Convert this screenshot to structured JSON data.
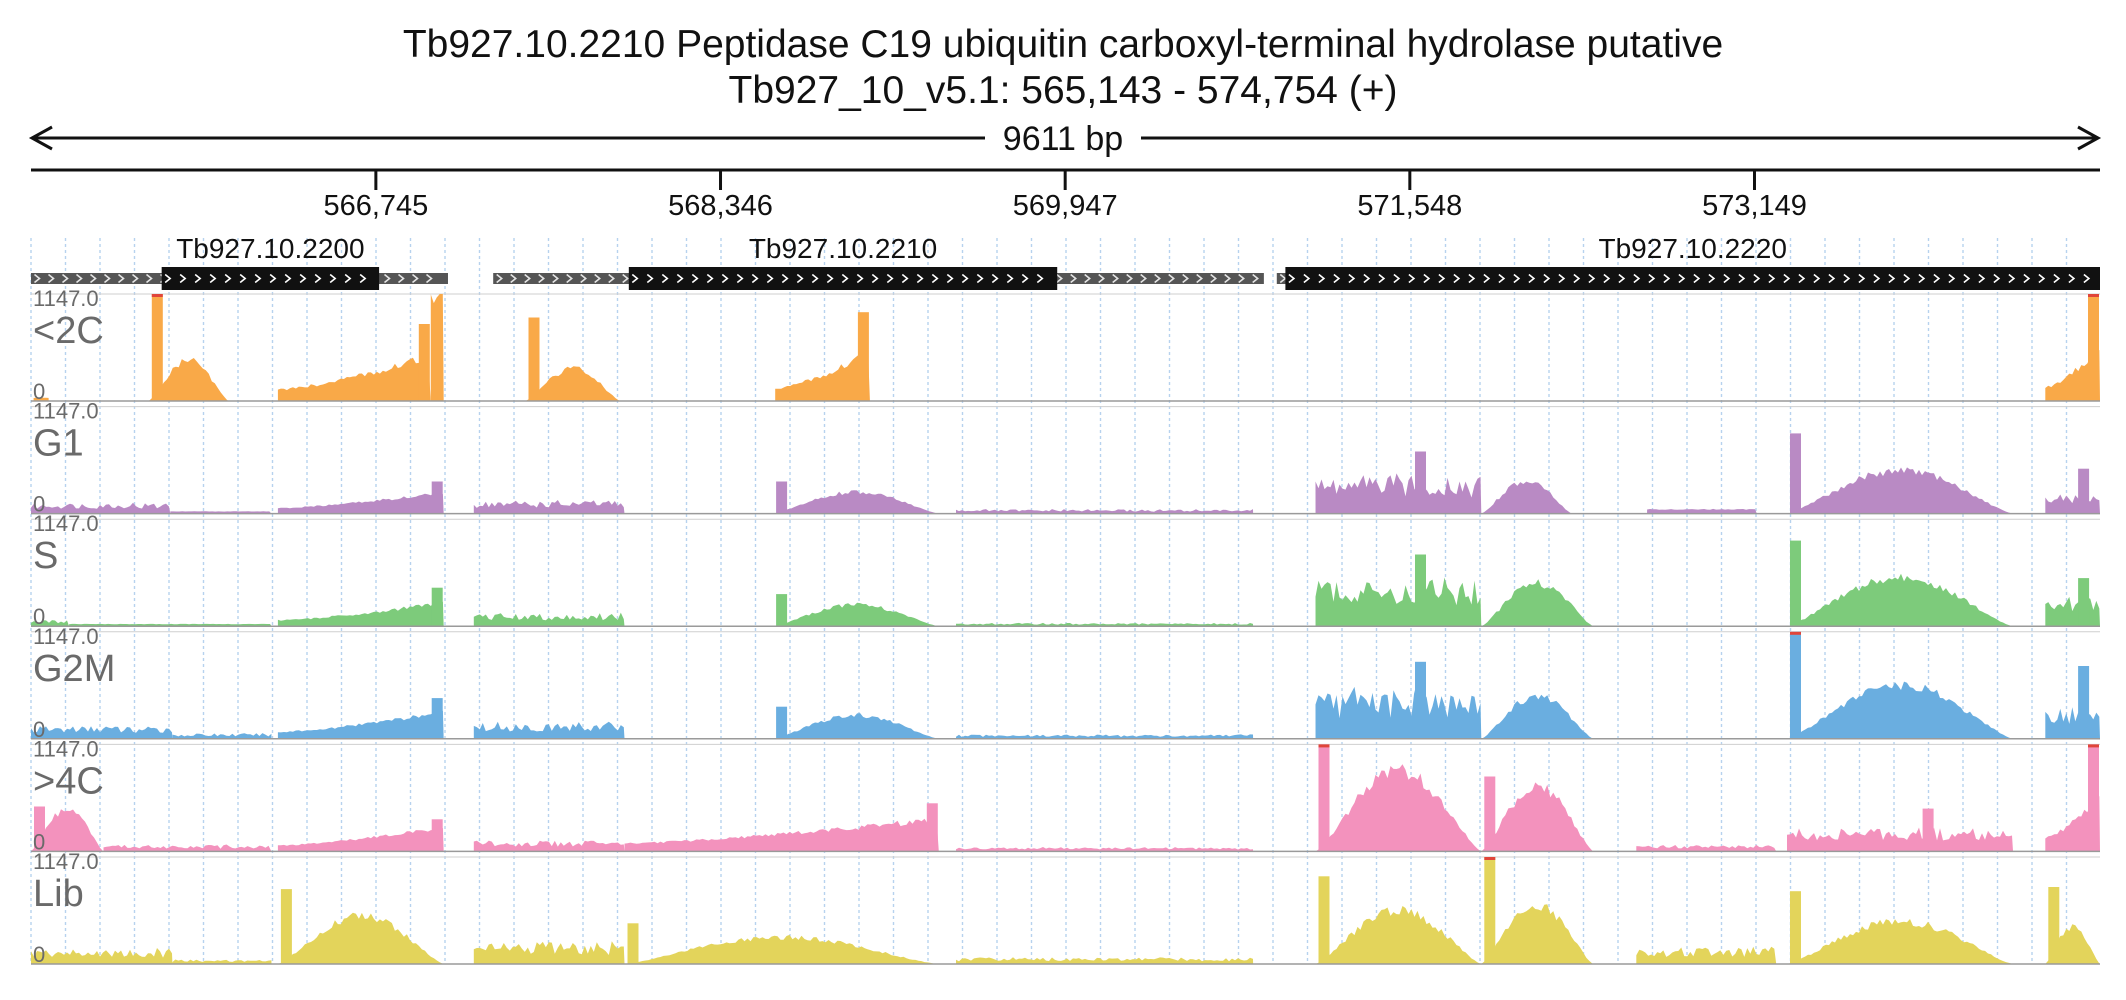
{
  "header": {
    "title": "Tb927.10.2210  Peptidase C19  ubiquitin carboxyl-terminal hydrolase  putative",
    "subtitle": "Tb927_10_v5.1: 565,143 - 574,754 (+)"
  },
  "chart_data": {
    "type": "area",
    "x_range": [
      565143,
      574754
    ],
    "span_label": "9611 bp",
    "ticks": [
      {
        "pos": 566745,
        "label": "566,745"
      },
      {
        "pos": 568346,
        "label": "568,346"
      },
      {
        "pos": 569947,
        "label": "569,947"
      },
      {
        "pos": 571548,
        "label": "571,548"
      },
      {
        "pos": 573149,
        "label": "573,149"
      }
    ],
    "genes": [
      {
        "id": "Tb927.10.2200",
        "utr": [
          565143,
          567080
        ],
        "cds": [
          565750,
          566760
        ]
      },
      {
        "id": "Tb927.10.2210",
        "utr": [
          567290,
          570870
        ],
        "cds": [
          567920,
          569910
        ]
      },
      {
        "id": "Tb927.10.2220",
        "utr": [
          570930,
          574754
        ],
        "cds": [
          570970,
          574754
        ]
      }
    ],
    "ylim": [
      0,
      1147.0
    ],
    "y_top_label": "1147.0",
    "y_bottom_label": "0",
    "series": [
      {
        "name": "<2C",
        "color": "#f9a948",
        "segments": [
          {
            "x": [
              565155,
              565225
            ],
            "level": 0.03,
            "shape": "flat"
          },
          {
            "x": [
              565690,
              566060
            ],
            "level": 0.38,
            "shape": "hump",
            "spike": 1.0
          },
          {
            "x": [
              566290,
              567000
            ],
            "level": 0.42,
            "shape": "rise",
            "spike": 0.72
          },
          {
            "x": [
              567000,
              567060
            ],
            "level": 1.0,
            "shape": "flat"
          },
          {
            "x": [
              567440,
              567880
            ],
            "level": 0.3,
            "shape": "hump",
            "spike": 0.78
          },
          {
            "x": [
              568600,
              569040
            ],
            "level": 0.45,
            "shape": "rise",
            "spike": 0.83
          },
          {
            "x": [
              574500,
              574754
            ],
            "level": 0.5,
            "shape": "rise",
            "spike": 1.0
          }
        ]
      },
      {
        "name": "G1",
        "color": "#b98ac4",
        "segments": [
          {
            "x": [
              565143,
              565790
            ],
            "level": 0.1,
            "shape": "noisy"
          },
          {
            "x": [
              565790,
              566260
            ],
            "level": 0.02,
            "shape": "flat"
          },
          {
            "x": [
              566290,
              567060
            ],
            "level": 0.2,
            "shape": "rise",
            "spike": 0.3
          },
          {
            "x": [
              567200,
              567900
            ],
            "level": 0.12,
            "shape": "noisy"
          },
          {
            "x": [
              568590,
              569360
            ],
            "level": 0.2,
            "shape": "hump",
            "spike": 0.3
          },
          {
            "x": [
              569440,
              570820
            ],
            "level": 0.04,
            "shape": "noisy"
          },
          {
            "x": [
              571110,
              571880
            ],
            "level": 0.35,
            "shape": "noisy",
            "spike": 0.58
          },
          {
            "x": [
              571880,
              572300
            ],
            "level": 0.3,
            "shape": "hump"
          },
          {
            "x": [
              572650,
              573160
            ],
            "level": 0.04,
            "shape": "flat"
          },
          {
            "x": [
              573300,
              574350
            ],
            "level": 0.4,
            "shape": "hump",
            "spike": 0.75
          },
          {
            "x": [
              574500,
              574754
            ],
            "level": 0.18,
            "shape": "noisy",
            "spike": 0.42
          }
        ]
      },
      {
        "name": "S",
        "color": "#7dcb7b",
        "segments": [
          {
            "x": [
              565143,
              565320
            ],
            "level": 0.06,
            "shape": "noisy"
          },
          {
            "x": [
              565320,
              566260
            ],
            "level": 0.02,
            "shape": "flat"
          },
          {
            "x": [
              566290,
              567060
            ],
            "level": 0.22,
            "shape": "rise",
            "spike": 0.36
          },
          {
            "x": [
              567200,
              567900
            ],
            "level": 0.12,
            "shape": "noisy"
          },
          {
            "x": [
              568590,
              569360
            ],
            "level": 0.2,
            "shape": "hump",
            "spike": 0.3
          },
          {
            "x": [
              569440,
              570820
            ],
            "level": 0.03,
            "shape": "noisy"
          },
          {
            "x": [
              571110,
              571880
            ],
            "level": 0.45,
            "shape": "noisy",
            "spike": 0.67
          },
          {
            "x": [
              571880,
              572400
            ],
            "level": 0.4,
            "shape": "hump"
          },
          {
            "x": [
              573300,
              574350
            ],
            "level": 0.45,
            "shape": "hump",
            "spike": 0.8
          },
          {
            "x": [
              574500,
              574754
            ],
            "level": 0.28,
            "shape": "noisy",
            "spike": 0.45
          }
        ]
      },
      {
        "name": "G2M",
        "color": "#6aaee0",
        "segments": [
          {
            "x": [
              565143,
              565800
            ],
            "level": 0.12,
            "shape": "noisy"
          },
          {
            "x": [
              565800,
              566260
            ],
            "level": 0.05,
            "shape": "noisy"
          },
          {
            "x": [
              566290,
              567060
            ],
            "level": 0.25,
            "shape": "rise",
            "spike": 0.38
          },
          {
            "x": [
              567200,
              567900
            ],
            "level": 0.15,
            "shape": "noisy"
          },
          {
            "x": [
              568590,
              569360
            ],
            "level": 0.22,
            "shape": "hump",
            "spike": 0.3
          },
          {
            "x": [
              569440,
              570820
            ],
            "level": 0.04,
            "shape": "noisy"
          },
          {
            "x": [
              571110,
              571880
            ],
            "level": 0.45,
            "shape": "noisy",
            "spike": 0.72
          },
          {
            "x": [
              571880,
              572400
            ],
            "level": 0.4,
            "shape": "hump"
          },
          {
            "x": [
              573300,
              574350
            ],
            "level": 0.5,
            "shape": "hump",
            "spike": 1.0
          },
          {
            "x": [
              574500,
              574754
            ],
            "level": 0.3,
            "shape": "noisy",
            "spike": 0.68
          }
        ]
      },
      {
        "name": ">4C",
        "color": "#f392bd",
        "segments": [
          {
            "x": [
              565143,
              565480
            ],
            "level": 0.4,
            "shape": "hump",
            "spike": 0.42
          },
          {
            "x": [
              565480,
              566260
            ],
            "level": 0.06,
            "shape": "noisy"
          },
          {
            "x": [
              566290,
              567060
            ],
            "level": 0.22,
            "shape": "rise",
            "spike": 0.3
          },
          {
            "x": [
              567200,
              567900
            ],
            "level": 0.1,
            "shape": "noisy"
          },
          {
            "x": [
              567900,
              569360
            ],
            "level": 0.3,
            "shape": "rise",
            "spike": 0.45
          },
          {
            "x": [
              569440,
              570820
            ],
            "level": 0.04,
            "shape": "noisy"
          },
          {
            "x": [
              571110,
              571880
            ],
            "level": 0.75,
            "shape": "hump",
            "spike": 1.0
          },
          {
            "x": [
              571880,
              572400
            ],
            "level": 0.6,
            "shape": "hump",
            "spike": 0.7
          },
          {
            "x": [
              572600,
              573250
            ],
            "level": 0.06,
            "shape": "noisy"
          },
          {
            "x": [
              573300,
              574350
            ],
            "level": 0.22,
            "shape": "noisy",
            "spike": 0.4
          },
          {
            "x": [
              574500,
              574754
            ],
            "level": 0.5,
            "shape": "rise",
            "spike": 1.0
          }
        ]
      },
      {
        "name": "Lib",
        "color": "#e3d45b",
        "segments": [
          {
            "x": [
              565143,
              565800
            ],
            "level": 0.14,
            "shape": "noisy"
          },
          {
            "x": [
              565800,
              566260
            ],
            "level": 0.04,
            "shape": "noisy"
          },
          {
            "x": [
              566290,
              567060
            ],
            "level": 0.45,
            "shape": "hump",
            "spike": 0.7
          },
          {
            "x": [
              567200,
              567900
            ],
            "level": 0.2,
            "shape": "noisy"
          },
          {
            "x": [
              567900,
              569360
            ],
            "level": 0.25,
            "shape": "hump",
            "spike": 0.38
          },
          {
            "x": [
              569440,
              570820
            ],
            "level": 0.06,
            "shape": "noisy"
          },
          {
            "x": [
              571110,
              571880
            ],
            "level": 0.5,
            "shape": "hump",
            "spike": 0.82
          },
          {
            "x": [
              571880,
              572400
            ],
            "level": 0.55,
            "shape": "hump",
            "spike": 1.0
          },
          {
            "x": [
              572600,
              573250
            ],
            "level": 0.15,
            "shape": "noisy"
          },
          {
            "x": [
              573300,
              574350
            ],
            "level": 0.4,
            "shape": "hump",
            "spike": 0.68
          },
          {
            "x": [
              574500,
              574754
            ],
            "level": 0.35,
            "shape": "hump",
            "spike": 0.72
          }
        ]
      }
    ]
  }
}
